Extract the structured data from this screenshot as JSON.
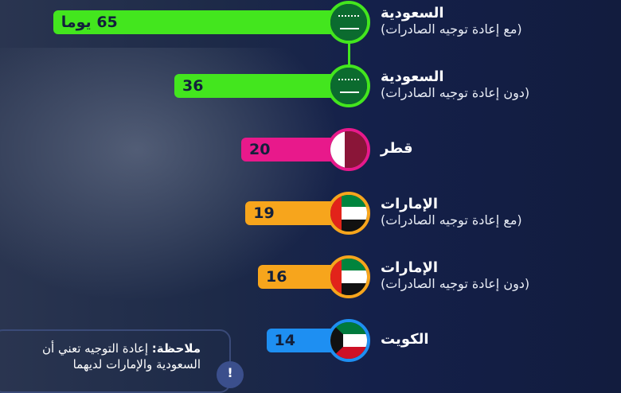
{
  "chart_data": {
    "type": "bar",
    "orientation": "horizontal",
    "unit": "يوما",
    "categories": [
      {
        "title": "السعودية",
        "subtitle": "(مع إعادة توجيه الصادرات)",
        "flag": "saudi-arabia"
      },
      {
        "title": "السعودية",
        "subtitle": "(دون إعادة توجيه الصادرات)",
        "flag": "saudi-arabia"
      },
      {
        "title": "قطر",
        "subtitle": "",
        "flag": "qatar"
      },
      {
        "title": "الإمارات",
        "subtitle": "(مع إعادة توجيه الصادرات)",
        "flag": "uae"
      },
      {
        "title": "الإمارات",
        "subtitle": "(دون إعادة توجيه الصادرات)",
        "flag": "uae"
      },
      {
        "title": "الكويت",
        "subtitle": "",
        "flag": "kuwait"
      }
    ],
    "values": [
      65,
      36,
      20,
      19,
      16,
      14
    ],
    "value_labels": [
      "65 يوما",
      "36",
      "20",
      "19",
      "16",
      "14"
    ],
    "colors": [
      "#43e61e",
      "#43e61e",
      "#e8198b",
      "#f7a51c",
      "#f7a51c",
      "#1e8ff2"
    ]
  },
  "note": {
    "label": "ملاحظة:",
    "text": "إعادة التوجيه تعني أن السعودية والإمارات لديهما"
  }
}
